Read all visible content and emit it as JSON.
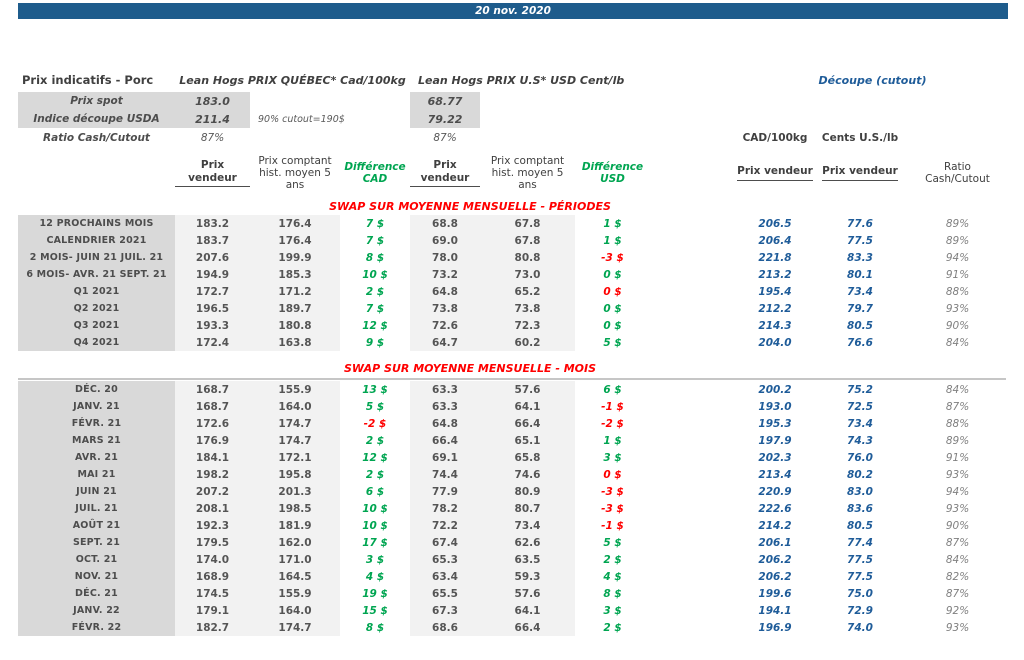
{
  "date_bar": "20 nov. 2020",
  "header": {
    "product_title": "Prix indicatifs - Porc",
    "quebec_title": "Lean Hogs PRIX QUÉBEC* Cad/100kg",
    "us_title": "Lean Hogs PRIX U.S* USD Cent/lb",
    "cutout_title": "Découpe (cutout)",
    "spot_label": "Prix spot",
    "spot_cad": "183.0",
    "spot_usd": "68.77",
    "index_label": "Indice découpe USDA",
    "index_cad": "211.4",
    "index_usd": "79.22",
    "cutout_note": "90% cutout=190$",
    "ratio_label": "Ratio Cash/Cutout",
    "ratio_cad": "87%",
    "ratio_usd": "87%",
    "unit_cad": "CAD/100kg",
    "unit_cents": "Cents U.S./lb"
  },
  "columns": {
    "prix_vendeur": "Prix vendeur",
    "prix_comptant": "Prix comptant\nhist. moyen 5\nans",
    "diff_cad": "Différence\nCAD",
    "diff_usd": "Différence\nUSD",
    "ratio_header": "Ratio\nCash/Cutout"
  },
  "colors": {
    "topbar_blue": "#1E5C8C",
    "accent_blue": "#1F5C99",
    "positive_green": "#00A551",
    "negative_red": "#FF0000",
    "label_gray": "#D9D9D9",
    "band_gray": "#F2F2F2"
  },
  "sections": [
    {
      "title": "SWAP SUR MOYENNE MENSUELLE - PÉRIODES",
      "rows": [
        {
          "label": "12 PROCHAINS MOIS",
          "pv_cad": "183.2",
          "hist_cad": "176.4",
          "diff_cad": "7 $",
          "dc": "g",
          "pv_usd": "68.8",
          "hist_usd": "67.8",
          "diff_usd": "1 $",
          "du": "g",
          "swap_cad": "206.5",
          "swap_cents": "77.6",
          "ratio": "89%"
        },
        {
          "label": "CALENDRIER 2021",
          "pv_cad": "183.7",
          "hist_cad": "176.4",
          "diff_cad": "7 $",
          "dc": "g",
          "pv_usd": "69.0",
          "hist_usd": "67.8",
          "diff_usd": "1 $",
          "du": "g",
          "swap_cad": "206.4",
          "swap_cents": "77.5",
          "ratio": "89%"
        },
        {
          "label": "2 MOIS- JUIN 21 JUIL. 21",
          "pv_cad": "207.6",
          "hist_cad": "199.9",
          "diff_cad": "8 $",
          "dc": "g",
          "pv_usd": "78.0",
          "hist_usd": "80.8",
          "diff_usd": "-3 $",
          "du": "r",
          "swap_cad": "221.8",
          "swap_cents": "83.3",
          "ratio": "94%"
        },
        {
          "label": "6 MOIS- AVR. 21 SEPT. 21",
          "pv_cad": "194.9",
          "hist_cad": "185.3",
          "diff_cad": "10 $",
          "dc": "g",
          "pv_usd": "73.2",
          "hist_usd": "73.0",
          "diff_usd": "0 $",
          "du": "g",
          "swap_cad": "213.2",
          "swap_cents": "80.1",
          "ratio": "91%"
        },
        {
          "label": "Q1 2021",
          "pv_cad": "172.7",
          "hist_cad": "171.2",
          "diff_cad": "2 $",
          "dc": "g",
          "pv_usd": "64.8",
          "hist_usd": "65.2",
          "diff_usd": "0 $",
          "du": "r",
          "swap_cad": "195.4",
          "swap_cents": "73.4",
          "ratio": "88%"
        },
        {
          "label": "Q2 2021",
          "pv_cad": "196.5",
          "hist_cad": "189.7",
          "diff_cad": "7 $",
          "dc": "g",
          "pv_usd": "73.8",
          "hist_usd": "73.8",
          "diff_usd": "0 $",
          "du": "g",
          "swap_cad": "212.2",
          "swap_cents": "79.7",
          "ratio": "93%"
        },
        {
          "label": "Q3 2021",
          "pv_cad": "193.3",
          "hist_cad": "180.8",
          "diff_cad": "12 $",
          "dc": "g",
          "pv_usd": "72.6",
          "hist_usd": "72.3",
          "diff_usd": "0 $",
          "du": "g",
          "swap_cad": "214.3",
          "swap_cents": "80.5",
          "ratio": "90%"
        },
        {
          "label": "Q4 2021",
          "pv_cad": "172.4",
          "hist_cad": "163.8",
          "diff_cad": "9 $",
          "dc": "g",
          "pv_usd": "64.7",
          "hist_usd": "60.2",
          "diff_usd": "5 $",
          "du": "g",
          "swap_cad": "204.0",
          "swap_cents": "76.6",
          "ratio": "84%"
        }
      ]
    },
    {
      "title": "SWAP SUR MOYENNE MENSUELLE - MOIS",
      "rows": [
        {
          "label": "DÉC. 20",
          "pv_cad": "168.7",
          "hist_cad": "155.9",
          "diff_cad": "13 $",
          "dc": "g",
          "pv_usd": "63.3",
          "hist_usd": "57.6",
          "diff_usd": "6 $",
          "du": "g",
          "swap_cad": "200.2",
          "swap_cents": "75.2",
          "ratio": "84%"
        },
        {
          "label": "JANV. 21",
          "pv_cad": "168.7",
          "hist_cad": "164.0",
          "diff_cad": "5 $",
          "dc": "g",
          "pv_usd": "63.3",
          "hist_usd": "64.1",
          "diff_usd": "-1 $",
          "du": "r",
          "swap_cad": "193.0",
          "swap_cents": "72.5",
          "ratio": "87%"
        },
        {
          "label": "FÉVR. 21",
          "pv_cad": "172.6",
          "hist_cad": "174.7",
          "diff_cad": "-2 $",
          "dc": "r",
          "pv_usd": "64.8",
          "hist_usd": "66.4",
          "diff_usd": "-2 $",
          "du": "r",
          "swap_cad": "195.3",
          "swap_cents": "73.4",
          "ratio": "88%"
        },
        {
          "label": "MARS 21",
          "pv_cad": "176.9",
          "hist_cad": "174.7",
          "diff_cad": "2 $",
          "dc": "g",
          "pv_usd": "66.4",
          "hist_usd": "65.1",
          "diff_usd": "1 $",
          "du": "g",
          "swap_cad": "197.9",
          "swap_cents": "74.3",
          "ratio": "89%"
        },
        {
          "label": "AVR. 21",
          "pv_cad": "184.1",
          "hist_cad": "172.1",
          "diff_cad": "12 $",
          "dc": "g",
          "pv_usd": "69.1",
          "hist_usd": "65.8",
          "diff_usd": "3 $",
          "du": "g",
          "swap_cad": "202.3",
          "swap_cents": "76.0",
          "ratio": "91%"
        },
        {
          "label": "MAI 21",
          "pv_cad": "198.2",
          "hist_cad": "195.8",
          "diff_cad": "2 $",
          "dc": "g",
          "pv_usd": "74.4",
          "hist_usd": "74.6",
          "diff_usd": "0 $",
          "du": "r",
          "swap_cad": "213.4",
          "swap_cents": "80.2",
          "ratio": "93%"
        },
        {
          "label": "JUIN 21",
          "pv_cad": "207.2",
          "hist_cad": "201.3",
          "diff_cad": "6 $",
          "dc": "g",
          "pv_usd": "77.9",
          "hist_usd": "80.9",
          "diff_usd": "-3 $",
          "du": "r",
          "swap_cad": "220.9",
          "swap_cents": "83.0",
          "ratio": "94%"
        },
        {
          "label": "JUIL. 21",
          "pv_cad": "208.1",
          "hist_cad": "198.5",
          "diff_cad": "10 $",
          "dc": "g",
          "pv_usd": "78.2",
          "hist_usd": "80.7",
          "diff_usd": "-3 $",
          "du": "r",
          "swap_cad": "222.6",
          "swap_cents": "83.6",
          "ratio": "93%"
        },
        {
          "label": "AOÛT 21",
          "pv_cad": "192.3",
          "hist_cad": "181.9",
          "diff_cad": "10 $",
          "dc": "g",
          "pv_usd": "72.2",
          "hist_usd": "73.4",
          "diff_usd": "-1 $",
          "du": "r",
          "swap_cad": "214.2",
          "swap_cents": "80.5",
          "ratio": "90%"
        },
        {
          "label": "SEPT. 21",
          "pv_cad": "179.5",
          "hist_cad": "162.0",
          "diff_cad": "17 $",
          "dc": "g",
          "pv_usd": "67.4",
          "hist_usd": "62.6",
          "diff_usd": "5 $",
          "du": "g",
          "swap_cad": "206.1",
          "swap_cents": "77.4",
          "ratio": "87%"
        },
        {
          "label": "OCT. 21",
          "pv_cad": "174.0",
          "hist_cad": "171.0",
          "diff_cad": "3 $",
          "dc": "g",
          "pv_usd": "65.3",
          "hist_usd": "63.5",
          "diff_usd": "2 $",
          "du": "g",
          "swap_cad": "206.2",
          "swap_cents": "77.5",
          "ratio": "84%"
        },
        {
          "label": "NOV. 21",
          "pv_cad": "168.9",
          "hist_cad": "164.5",
          "diff_cad": "4 $",
          "dc": "g",
          "pv_usd": "63.4",
          "hist_usd": "59.3",
          "diff_usd": "4 $",
          "du": "g",
          "swap_cad": "206.2",
          "swap_cents": "77.5",
          "ratio": "82%"
        },
        {
          "label": "DÉC. 21",
          "pv_cad": "174.5",
          "hist_cad": "155.9",
          "diff_cad": "19 $",
          "dc": "g",
          "pv_usd": "65.5",
          "hist_usd": "57.6",
          "diff_usd": "8 $",
          "du": "g",
          "swap_cad": "199.6",
          "swap_cents": "75.0",
          "ratio": "87%"
        },
        {
          "label": "JANV. 22",
          "pv_cad": "179.1",
          "hist_cad": "164.0",
          "diff_cad": "15 $",
          "dc": "g",
          "pv_usd": "67.3",
          "hist_usd": "64.1",
          "diff_usd": "3 $",
          "du": "g",
          "swap_cad": "194.1",
          "swap_cents": "72.9",
          "ratio": "92%"
        },
        {
          "label": "FÉVR. 22",
          "pv_cad": "182.7",
          "hist_cad": "174.7",
          "diff_cad": "8 $",
          "dc": "g",
          "pv_usd": "68.6",
          "hist_usd": "66.4",
          "diff_usd": "2 $",
          "du": "g",
          "swap_cad": "196.9",
          "swap_cents": "74.0",
          "ratio": "93%"
        }
      ]
    }
  ]
}
